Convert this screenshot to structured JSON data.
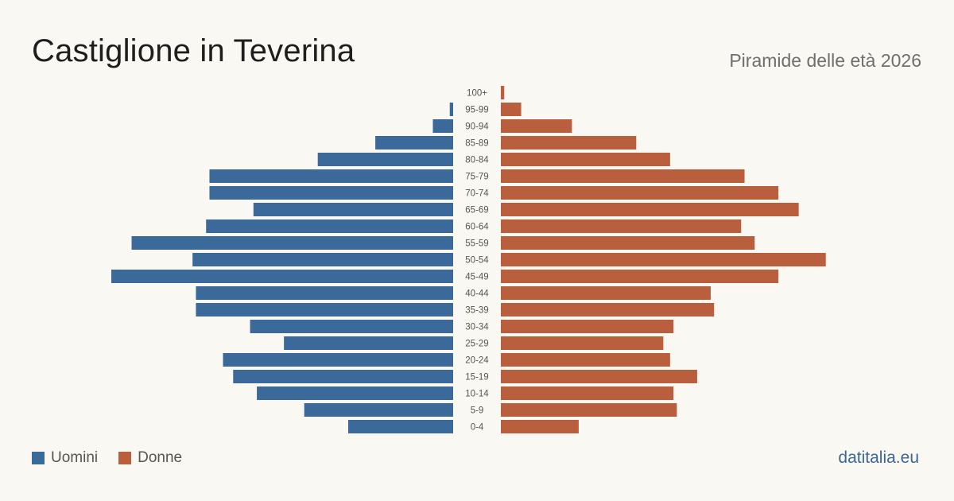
{
  "header": {
    "title": "Castiglione in Teverina",
    "subtitle": "Piramide delle età 2026"
  },
  "legend": {
    "male_label": "Uomini",
    "female_label": "Donne"
  },
  "footer": {
    "source": "datitalia.eu"
  },
  "colors": {
    "male": "#3b6a9a",
    "female": "#b95f3d",
    "background": "#faf8f3"
  },
  "chart_data": {
    "type": "bar",
    "orientation": "horizontal",
    "categories": [
      "100+",
      "95-99",
      "90-94",
      "85-89",
      "80-84",
      "75-79",
      "70-74",
      "65-69",
      "60-64",
      "55-59",
      "50-54",
      "45-49",
      "40-44",
      "35-39",
      "30-34",
      "25-29",
      "20-24",
      "15-19",
      "10-14",
      "5-9",
      "0-4"
    ],
    "series": [
      {
        "name": "Uomini",
        "values": [
          0,
          1,
          6,
          23,
          40,
          72,
          72,
          59,
          73,
          95,
          77,
          101,
          76,
          76,
          60,
          50,
          68,
          65,
          58,
          44,
          31
        ]
      },
      {
        "name": "Donne",
        "values": [
          1,
          6,
          21,
          40,
          50,
          72,
          82,
          88,
          71,
          75,
          96,
          82,
          62,
          63,
          51,
          48,
          50,
          58,
          51,
          52,
          23
        ]
      }
    ],
    "xlim": [
      0,
      101
    ],
    "grid": false,
    "legend_position": "bottom-left"
  }
}
